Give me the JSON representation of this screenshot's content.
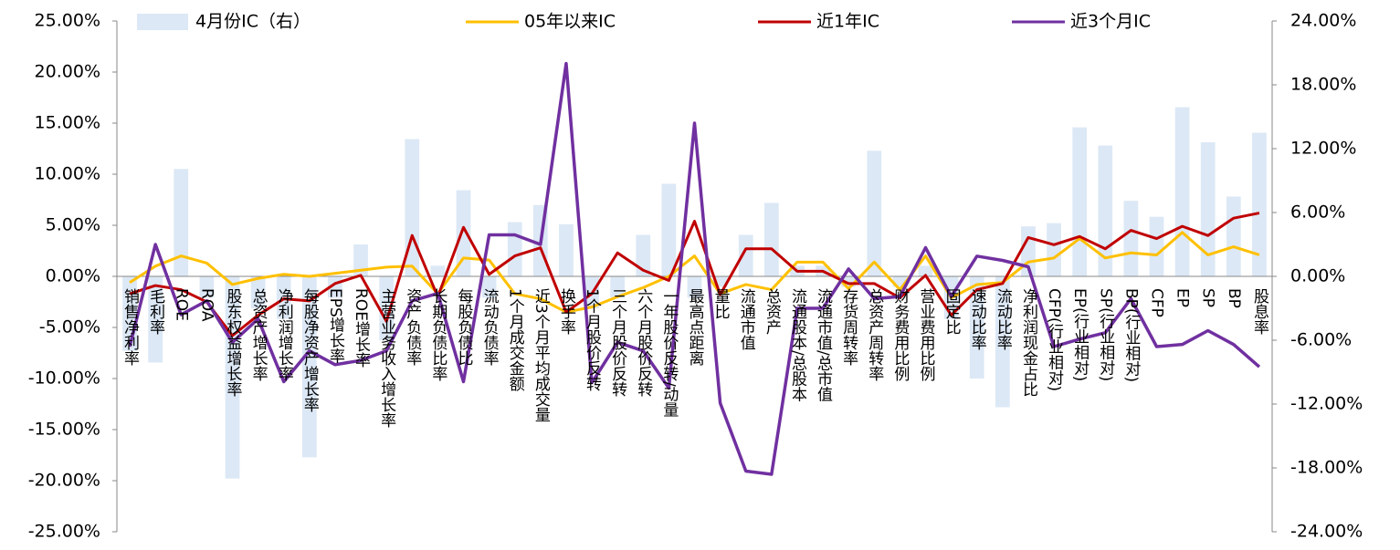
{
  "chart_data": {
    "type": "combo",
    "categories": [
      "销售净利率",
      "毛利率",
      "ROE",
      "ROA",
      "股东权益增长率",
      "总资产增长率",
      "净利润增长率",
      "每股净资产增长率",
      "EPS增长率",
      "ROE增长率",
      "主营业务收入增长率",
      "资产负债率",
      "长期负债比率",
      "每股负债比",
      "流动负债率",
      "1个月成交金额",
      "近3个月平均成交量",
      "换手率",
      "1个月股价反转",
      "三个月股价反转",
      "六个月股价反转",
      "一年股价反转/动量",
      "最高点距离",
      "量比",
      "流通市值",
      "总资产",
      "流通股本/总股本",
      "流通市值/总市值",
      "存货周转率",
      "总资产周转率",
      "财务费用比例",
      "营业费用比例",
      "固定比",
      "速动比率",
      "流动比率",
      "净利润现金占比",
      "CFP(行业相对)",
      "EP(行业相对)",
      "SP(行业相对)",
      "BP(行业相对)",
      "CFP",
      "EP",
      "SP",
      "BP",
      "股息率"
    ],
    "series": [
      {
        "name": "4月份IC（右）",
        "type": "bar",
        "axis": "y2",
        "color": "#dce8f5",
        "values": [
          -7,
          -8.1,
          10.1,
          -2,
          -19,
          -3,
          -4,
          -17,
          -2,
          3,
          -6,
          12.9,
          1,
          8.1,
          -2,
          5.1,
          6.7,
          4.9,
          -3,
          -2,
          3.9,
          8.7,
          -2,
          -1,
          3.9,
          6.9,
          1,
          1,
          -1,
          11.8,
          -1,
          1,
          -4,
          -9.6,
          -12.3,
          4.7,
          5,
          14,
          12.3,
          7.1,
          5.6,
          15.9,
          12.6,
          7.5,
          13.5
        ]
      },
      {
        "name": "05年以来IC",
        "type": "line",
        "color": "#ffc000",
        "values": [
          -0.6,
          1,
          2,
          1.3,
          -0.8,
          -0.2,
          0.2,
          0,
          0.3,
          0.6,
          0.9,
          1,
          -1.7,
          1.8,
          1.6,
          -1.7,
          -2.2,
          -3.5,
          -3,
          -2,
          -1.1,
          0,
          2,
          -1.7,
          -0.8,
          -1.3,
          1.4,
          1.4,
          -1.2,
          1.4,
          -1.3,
          2,
          -2.1,
          -0.8,
          -0.6,
          1.4,
          1.8,
          3.7,
          1.8,
          2.3,
          2.1,
          4.3,
          2.1,
          2.9,
          2.1
        ]
      },
      {
        "name": "近1年IC",
        "type": "line",
        "color": "#c00000",
        "values": [
          -1.7,
          -0.9,
          -1.3,
          -2.5,
          -5.8,
          -3.8,
          -2.2,
          -2.4,
          -0.7,
          0.1,
          -4.4,
          4,
          -2,
          4.8,
          0.2,
          2,
          2.8,
          -3.5,
          -1.7,
          2.3,
          0.6,
          -0.4,
          5.4,
          -1.8,
          2.7,
          2.7,
          0.5,
          0.5,
          -0.7,
          -0.7,
          -2.1,
          0.1,
          -3.8,
          -1.3,
          -0.7,
          3.8,
          3.1,
          3.9,
          2.7,
          4.5,
          3.7,
          4.9,
          4,
          5.7,
          6.2
        ]
      },
      {
        "name": "近3个月IC",
        "type": "line",
        "axis": "y2",
        "color": "#7030a0",
        "values": [
          -6.6,
          3,
          -3.6,
          -2.3,
          -6.2,
          -4,
          -9.9,
          -7,
          -8.3,
          -7.9,
          -7,
          -2.3,
          -1.6,
          -9.9,
          3.9,
          3.9,
          3,
          20,
          -10,
          -6.2,
          -7,
          -10.5,
          14.4,
          -11.9,
          -18.3,
          -18.6,
          -3,
          -3,
          0.7,
          -2.1,
          -1.9,
          2.7,
          -1.9,
          1.9,
          1.5,
          0.9,
          -6.6,
          -5.9,
          -5.3,
          -2.1,
          -6.6,
          -6.4,
          -5.1,
          -6.4,
          -8.5
        ]
      }
    ],
    "ylim": [
      -25,
      25
    ],
    "yticks": [
      {
        "value": -25,
        "label": "-25.00%"
      },
      {
        "value": -20,
        "label": "-20.00%"
      },
      {
        "value": -15,
        "label": "-15.00%"
      },
      {
        "value": -10,
        "label": "-10.00%"
      },
      {
        "value": -5,
        "label": "-5.00%"
      },
      {
        "value": 0,
        "label": "0.00%"
      },
      {
        "value": 5,
        "label": "5.00%"
      },
      {
        "value": 10,
        "label": "10.00%"
      },
      {
        "value": 15,
        "label": "15.00%"
      },
      {
        "value": 20,
        "label": "20.00%"
      },
      {
        "value": 25,
        "label": "25.00%"
      }
    ],
    "y2lim": [
      -24,
      24
    ],
    "y2ticks": [
      {
        "value": -24,
        "label": "-24.00%"
      },
      {
        "value": -18,
        "label": "-18.00%"
      },
      {
        "value": -12,
        "label": "-12.00%"
      },
      {
        "value": -6,
        "label": "-6.00%"
      },
      {
        "value": 0,
        "label": "0.00%"
      },
      {
        "value": 6,
        "label": "6.00%"
      },
      {
        "value": 12,
        "label": "12.00%"
      },
      {
        "value": 18,
        "label": "18.00%"
      },
      {
        "value": 24,
        "label": "24.00%"
      }
    ]
  }
}
